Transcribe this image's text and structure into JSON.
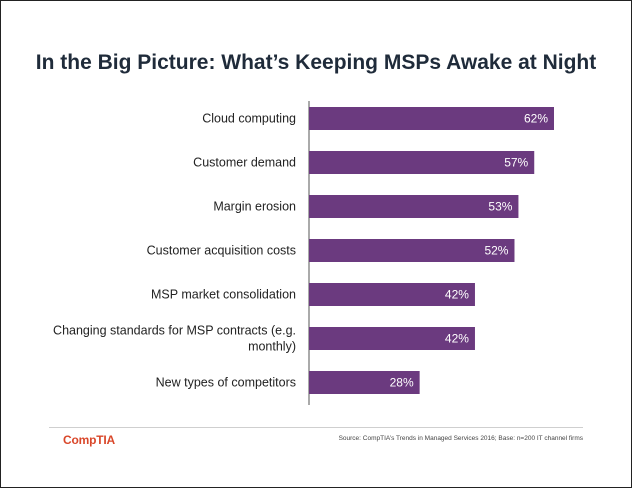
{
  "header": {
    "title": "In the Big Picture: What’s Keeping MSPs Awake at Night"
  },
  "colors": {
    "bar": "#6b3a7f",
    "logo": "#d9472a",
    "axis": "#555555"
  },
  "chart_data": {
    "type": "bar",
    "orientation": "horizontal",
    "title": "In the Big Picture: What’s Keeping MSPs Awake at Night",
    "categories": [
      [
        "Cloud computing"
      ],
      [
        "Customer demand"
      ],
      [
        "Margin erosion"
      ],
      [
        "Customer acquisition costs"
      ],
      [
        "MSP market consolidation"
      ],
      [
        "Changing standards for MSP contracts (e.g.",
        "monthly)"
      ],
      [
        "New types of competitors"
      ]
    ],
    "values": [
      62,
      57,
      53,
      52,
      42,
      42,
      28
    ],
    "data_labels": [
      "62%",
      "57%",
      "53%",
      "52%",
      "42%",
      "42%",
      "28%"
    ],
    "xlim": [
      0,
      100
    ],
    "grid": false,
    "legend": "none"
  },
  "footer": {
    "logo": "CompTIA",
    "source": "Source: CompTIA’s Trends in Managed Services 2016; Base: n=200 IT channel firms"
  }
}
